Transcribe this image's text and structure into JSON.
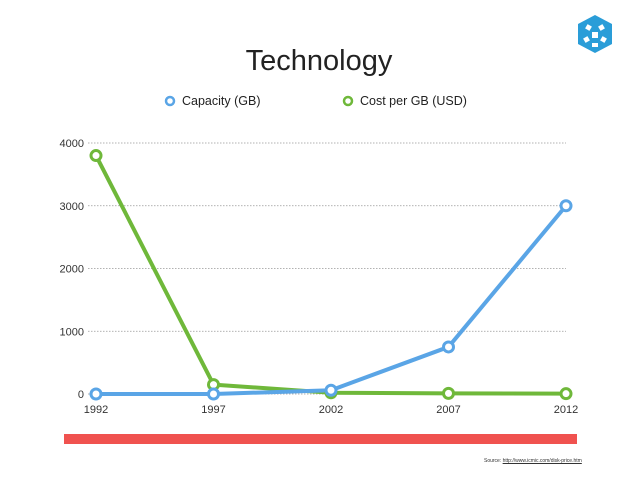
{
  "chart_data": {
    "type": "line",
    "title": "Technology",
    "x": [
      "1992",
      "1997",
      "2002",
      "2007",
      "2012"
    ],
    "series": [
      {
        "name": "Capacity (GB)",
        "color": "#5aa5e6",
        "values": [
          0,
          0,
          60,
          750,
          3000
        ]
      },
      {
        "name": "Cost per GB (USD)",
        "color": "#6fb83a",
        "values": [
          3800,
          150,
          20,
          10,
          5
        ]
      }
    ],
    "ylim": [
      0,
      4000
    ],
    "yticks": [
      "0",
      "1000",
      "2000",
      "3000",
      "4000"
    ],
    "grid": true,
    "legend_position": "top",
    "bar_color": "#f0524f"
  },
  "source": {
    "label": "Source:",
    "url": "http://www.icmic.com/disk-price.htm"
  },
  "logo": {
    "icon": "cube-logo-icon",
    "color": "#2a9dd8"
  }
}
